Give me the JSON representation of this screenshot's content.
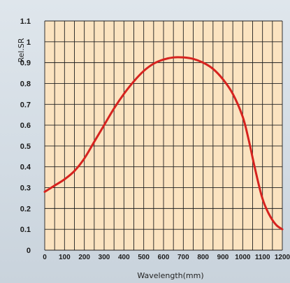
{
  "chart_data": {
    "type": "line",
    "xlabel": "Wavelength(mm)",
    "ylabel": "Rel.SR",
    "xlim": [
      0,
      1200
    ],
    "ylim": [
      0,
      1.1
    ],
    "x_ticks": [
      "0",
      "100",
      "200",
      "300",
      "400",
      "500",
      "600",
      "700",
      "800",
      "900",
      "1000",
      "1100",
      "1200"
    ],
    "y_ticks": [
      "0",
      "0.1",
      "0.2",
      "0.3",
      "0.4",
      "0.5",
      "0.6",
      "0.7",
      "0.8",
      "0.9",
      "1",
      "1.1"
    ],
    "grid": true,
    "colors": {
      "plot_bg": "#fbe3c0",
      "grid": "#1f1f1f",
      "line": "#d6231f"
    },
    "series": [
      {
        "x": [
          0,
          50,
          100,
          150,
          200,
          250,
          300,
          350,
          400,
          450,
          500,
          550,
          600,
          650,
          700,
          750,
          800,
          850,
          900,
          950,
          1000,
          1030,
          1060,
          1090,
          1110,
          1140,
          1170,
          1200
        ],
        "y": [
          0.28,
          0.31,
          0.34,
          0.38,
          0.44,
          0.52,
          0.6,
          0.68,
          0.75,
          0.81,
          0.86,
          0.895,
          0.915,
          0.925,
          0.925,
          0.918,
          0.9,
          0.87,
          0.82,
          0.75,
          0.64,
          0.53,
          0.4,
          0.28,
          0.22,
          0.16,
          0.12,
          0.1
        ]
      }
    ]
  }
}
